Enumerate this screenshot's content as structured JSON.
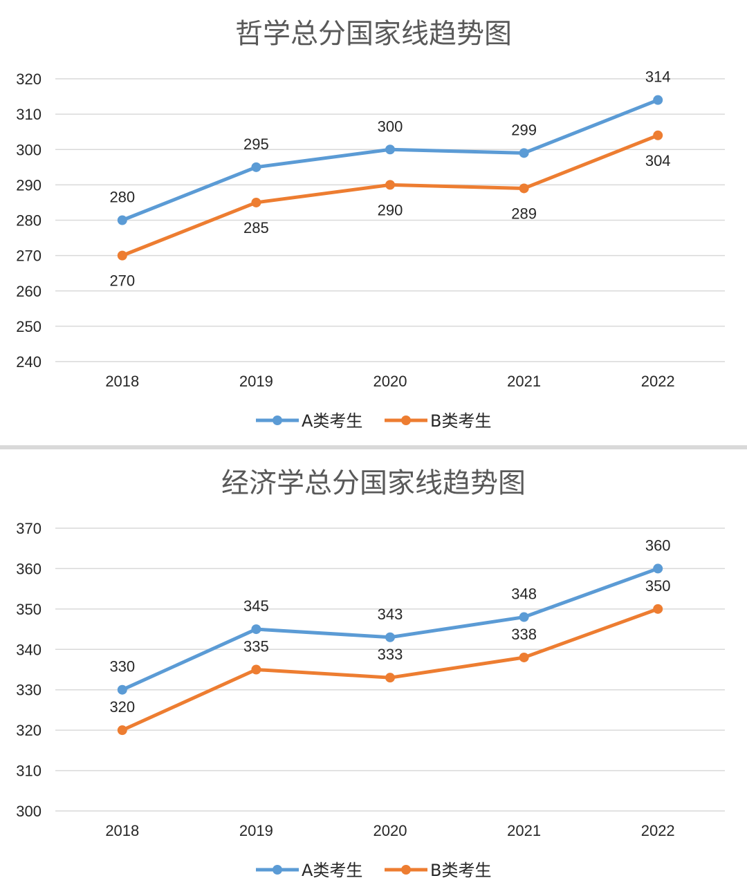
{
  "chart_data": [
    {
      "type": "line",
      "title": "哲学总分国家线趋势图",
      "categories": [
        "2018",
        "2019",
        "2020",
        "2021",
        "2022"
      ],
      "ylim": [
        240,
        320
      ],
      "yticks": [
        "320",
        "310",
        "300",
        "290",
        "280",
        "270",
        "260",
        "250",
        "240"
      ],
      "grid": true,
      "legend_position": "bottom",
      "series": [
        {
          "name": "A类考生",
          "color": "#5b9bd5",
          "values": [
            280,
            295,
            300,
            299,
            314
          ],
          "label_position": "above"
        },
        {
          "name": "B类考生",
          "color": "#ed7d31",
          "values": [
            270,
            285,
            290,
            289,
            304
          ],
          "label_position": "below"
        }
      ]
    },
    {
      "type": "line",
      "title": "经济学总分国家线趋势图",
      "categories": [
        "2018",
        "2019",
        "2020",
        "2021",
        "2022"
      ],
      "ylim": [
        300,
        370
      ],
      "yticks": [
        "370",
        "360",
        "350",
        "340",
        "330",
        "320",
        "310",
        "300"
      ],
      "grid": true,
      "legend_position": "bottom",
      "series": [
        {
          "name": "A类考生",
          "color": "#5b9bd5",
          "values": [
            330,
            345,
            343,
            348,
            360
          ],
          "label_position": "above"
        },
        {
          "name": "B类考生",
          "color": "#ed7d31",
          "values": [
            320,
            335,
            333,
            338,
            350
          ],
          "label_position": "above"
        }
      ]
    }
  ]
}
